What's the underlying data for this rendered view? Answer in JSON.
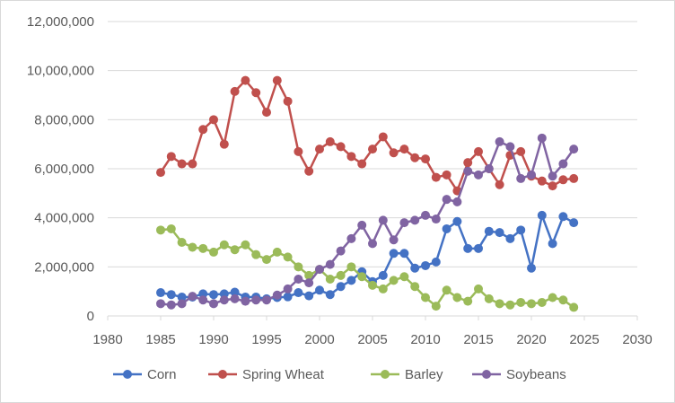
{
  "chart_data": {
    "type": "scatter",
    "mode": "lines+markers",
    "title": "",
    "xlabel": "",
    "ylabel": "",
    "xlim": [
      1980,
      2030
    ],
    "ylim": [
      0,
      12000000
    ],
    "x_ticks": [
      1980,
      1985,
      1990,
      1995,
      2000,
      2005,
      2010,
      2015,
      2020,
      2025,
      2030
    ],
    "x_tick_labels": [
      "1980",
      "1985",
      "1990",
      "1995",
      "2000",
      "2005",
      "2010",
      "2015",
      "2020",
      "2025",
      "2030"
    ],
    "y_ticks": [
      0,
      2000000,
      4000000,
      6000000,
      8000000,
      10000000,
      12000000
    ],
    "y_tick_labels": [
      "0",
      "2,000,000",
      "4,000,000",
      "6,000,000",
      "8,000,000",
      "10,000,000",
      "12,000,000"
    ],
    "grid": "horizontal",
    "legend": "bottom",
    "x": [
      1985,
      1986,
      1987,
      1988,
      1989,
      1990,
      1991,
      1992,
      1993,
      1994,
      1995,
      1996,
      1997,
      1998,
      1999,
      2000,
      2001,
      2002,
      2003,
      2004,
      2005,
      2006,
      2007,
      2008,
      2009,
      2010,
      2011,
      2012,
      2013,
      2014,
      2015,
      2016,
      2017,
      2018,
      2019,
      2020,
      2021,
      2022,
      2023,
      2024
    ],
    "series": [
      {
        "name": "Corn",
        "color": "#4472c4",
        "values": [
          950000,
          870000,
          770000,
          770000,
          900000,
          870000,
          900000,
          970000,
          770000,
          770000,
          700000,
          750000,
          780000,
          950000,
          820000,
          1050000,
          870000,
          1200000,
          1450000,
          1800000,
          1400000,
          1650000,
          2550000,
          2550000,
          1950000,
          2050000,
          2200000,
          3550000,
          3850000,
          2750000,
          2750000,
          3450000,
          3400000,
          3150000,
          3500000,
          1950000,
          4100000,
          2950000,
          4050000,
          3800000
        ]
      },
      {
        "name": "Spring Wheat",
        "color": "#c0504d",
        "values": [
          5850000,
          6500000,
          6200000,
          6200000,
          7600000,
          8000000,
          7000000,
          9150000,
          9600000,
          9100000,
          8300000,
          9600000,
          8750000,
          6700000,
          5900000,
          6800000,
          7100000,
          6900000,
          6500000,
          6200000,
          6800000,
          7300000,
          6650000,
          6800000,
          6450000,
          6400000,
          5650000,
          5750000,
          5100000,
          6250000,
          6700000,
          6000000,
          5350000,
          6550000,
          6700000,
          5700000,
          5500000,
          5300000,
          5550000,
          5600000
        ]
      },
      {
        "name": "Barley",
        "color": "#9bbb59",
        "values": [
          3500000,
          3550000,
          3000000,
          2800000,
          2750000,
          2600000,
          2900000,
          2700000,
          2900000,
          2500000,
          2300000,
          2600000,
          2400000,
          2000000,
          1650000,
          1900000,
          1500000,
          1650000,
          2000000,
          1600000,
          1250000,
          1100000,
          1450000,
          1600000,
          1200000,
          750000,
          400000,
          1050000,
          750000,
          600000,
          1100000,
          700000,
          500000,
          450000,
          550000,
          500000,
          550000,
          750000,
          650000,
          350000
        ]
      },
      {
        "name": "Soybeans",
        "color": "#8064a2",
        "values": [
          500000,
          450000,
          500000,
          800000,
          650000,
          500000,
          650000,
          700000,
          600000,
          650000,
          650000,
          850000,
          1100000,
          1500000,
          1350000,
          1900000,
          2100000,
          2650000,
          3150000,
          3700000,
          2950000,
          3900000,
          3100000,
          3800000,
          3900000,
          4100000,
          3950000,
          4750000,
          4650000,
          5900000,
          5750000,
          6000000,
          7100000,
          6900000,
          5600000,
          5750000,
          7250000,
          5700000,
          6200000,
          6800000
        ]
      }
    ]
  }
}
